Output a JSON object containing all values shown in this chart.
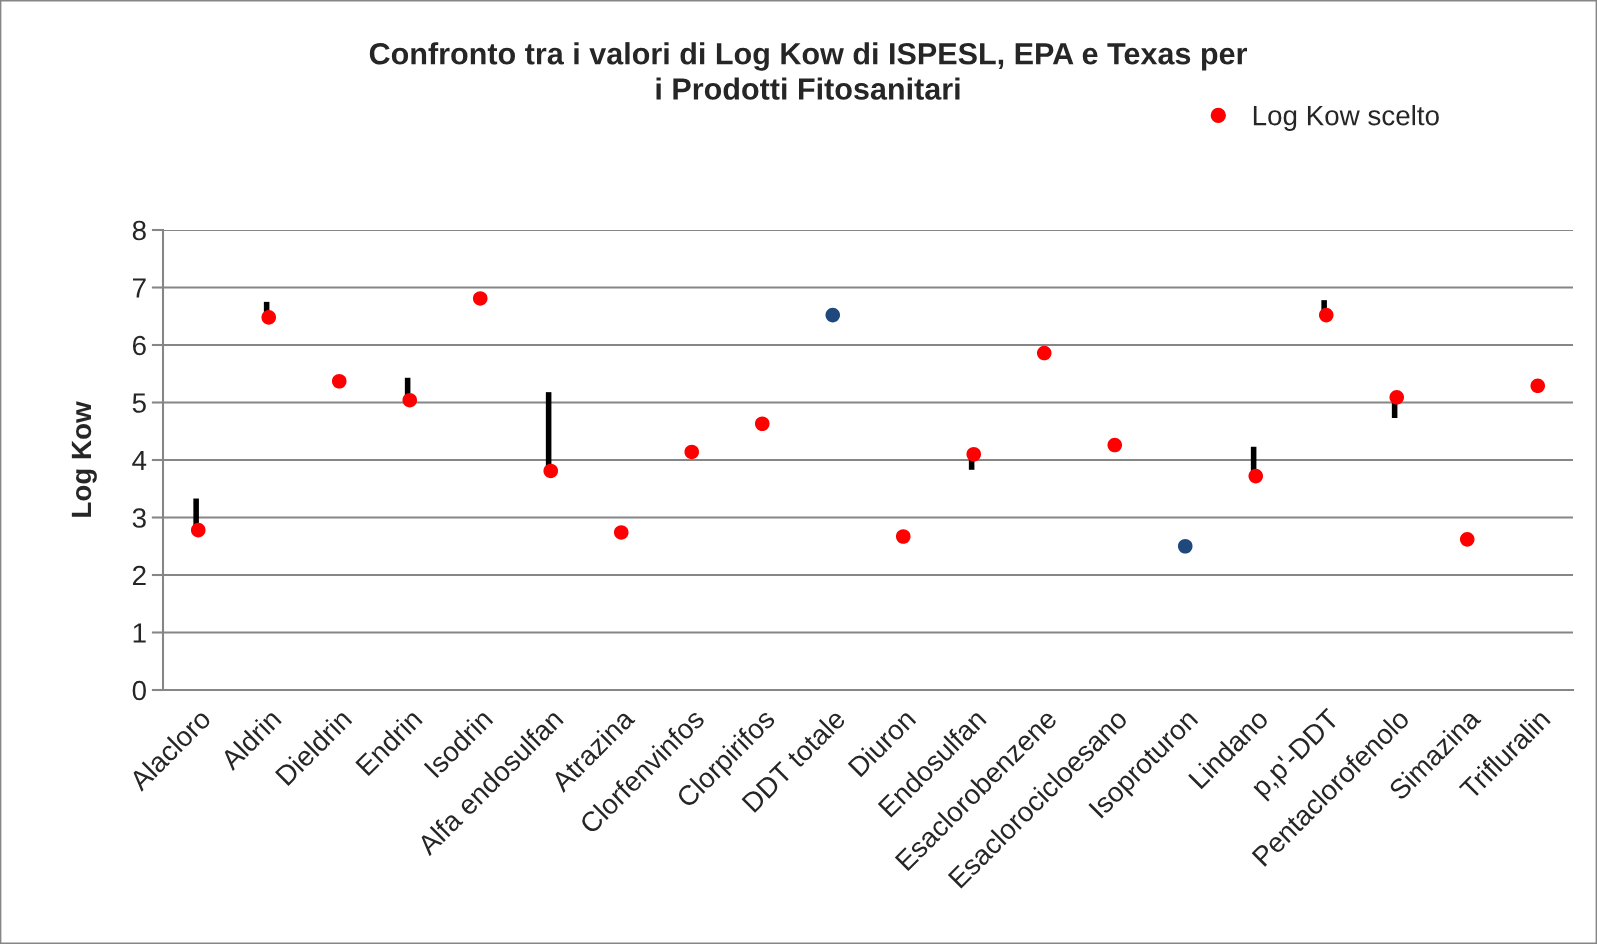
{
  "chart_data": {
    "type": "scatter",
    "title": "Confronto tra i valori di Log Kow di ISPESL, EPA e Texas per\ni Prodotti Fitosanitari",
    "ylabel": "Log Kow",
    "categories": [
      "Alacloro",
      "Aldrin",
      "Dieldrin",
      "Endrin",
      "Isodrin",
      "Alfa endosulfan",
      "Atrazina",
      "Clorfenvinfos",
      "Clorpirifos",
      "DDT totale",
      "Diuron",
      "Endosulfan",
      "Esaclorobenzene",
      "Esaclorocicloesano",
      "Isoproturon",
      "Lindano",
      "p,p'-DDT",
      "Pentaclorofenolo",
      "Simazina",
      "Trifluralin"
    ],
    "series": [
      {
        "name": "Log Kow scelto",
        "color": "#ff0000",
        "values": [
          2.78,
          6.48,
          5.37,
          5.04,
          6.81,
          3.81,
          2.74,
          4.14,
          4.63,
          6.52,
          2.67,
          4.1,
          5.86,
          4.26,
          2.5,
          3.72,
          6.52,
          5.09,
          2.62,
          5.29
        ],
        "colors": [
          "#ff0000",
          "#ff0000",
          "#ff0000",
          "#ff0000",
          "#ff0000",
          "#ff0000",
          "#ff0000",
          "#ff0000",
          "#ff0000",
          "#1f497d",
          "#ff0000",
          "#ff0000",
          "#ff0000",
          "#ff0000",
          "#1f497d",
          "#ff0000",
          "#ff0000",
          "#ff0000",
          "#ff0000",
          "#ff0000"
        ],
        "errors": [
          [
            2.78,
            3.33
          ],
          [
            6.48,
            6.75
          ],
          null,
          [
            5.04,
            5.43
          ],
          null,
          [
            3.81,
            5.18
          ],
          null,
          null,
          null,
          null,
          null,
          [
            3.83,
            4.1
          ],
          null,
          null,
          null,
          [
            3.72,
            4.23
          ],
          [
            6.52,
            6.78
          ],
          [
            4.73,
            5.09
          ],
          null,
          null
        ]
      }
    ],
    "ylim": [
      0,
      8
    ],
    "yticks": [
      0,
      1,
      2,
      3,
      4,
      5,
      6,
      7,
      8
    ],
    "grid": "y",
    "legend": "top right",
    "marker": "circle"
  }
}
